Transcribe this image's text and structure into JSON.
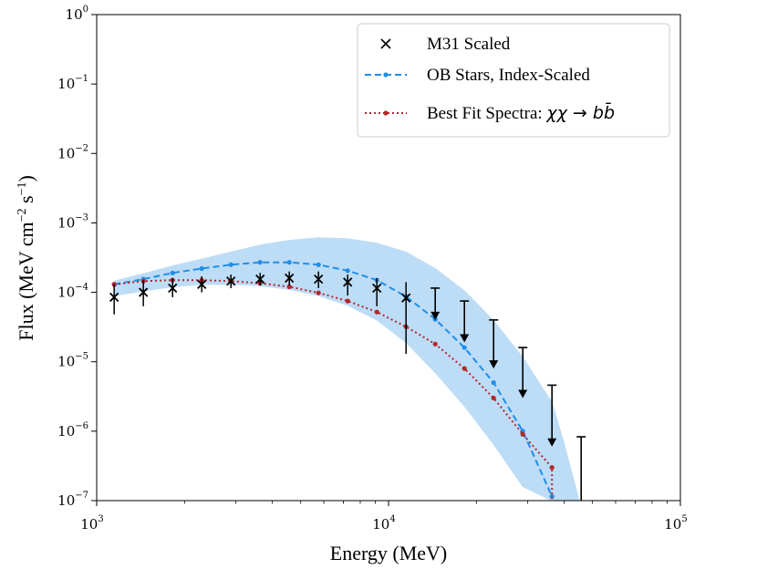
{
  "chart_data": {
    "type": "line",
    "title": "",
    "xlabel": "Energy (MeV)",
    "ylabel": {
      "prefix": "Flux (MeV cm",
      "exp1": "−2",
      "mid": " s",
      "exp2": "−1",
      "suffix": ")"
    },
    "xscale": "log",
    "yscale": "log",
    "xlim": [
      1000,
      100000
    ],
    "ylim": [
      1e-07,
      1
    ],
    "x_ticks": [
      {
        "value": 1000,
        "base": "10",
        "exp": "3"
      },
      {
        "value": 10000,
        "base": "10",
        "exp": "4"
      },
      {
        "value": 100000,
        "base": "10",
        "exp": "5"
      }
    ],
    "y_ticks": [
      {
        "value": 1e-07,
        "base": "10",
        "exp": "−7"
      },
      {
        "value": 1e-06,
        "base": "10",
        "exp": "−6"
      },
      {
        "value": 1e-05,
        "base": "10",
        "exp": "−5"
      },
      {
        "value": 0.0001,
        "base": "10",
        "exp": "−4"
      },
      {
        "value": 0.001,
        "base": "10",
        "exp": "−3"
      },
      {
        "value": 0.01,
        "base": "10",
        "exp": "−2"
      },
      {
        "value": 0.1,
        "base": "10",
        "exp": "−1"
      },
      {
        "value": 1,
        "base": "10",
        "exp": "0"
      }
    ],
    "legend_position": "top-right",
    "legend": {
      "m31": "M31 Scaled",
      "ob": "OB Stars, Index-Scaled",
      "fit_prefix": "Best Fit Spectra: ",
      "fit_math": "χχ → bb̄"
    },
    "colors": {
      "m31": "#000000",
      "ob_line": "#1f8ee8",
      "ob_band": "#bddcf6",
      "fit": "#b5262d"
    },
    "series": [
      {
        "name": "M31 Scaled",
        "kind": "errorbar",
        "x": [
          1148,
          1445,
          1820,
          2291,
          2884,
          3631,
          4571,
          5754,
          7244,
          9120,
          11482
        ],
        "y": [
          8.5e-05,
          0.0001,
          0.000115,
          0.00013,
          0.000145,
          0.000155,
          0.00016,
          0.000155,
          0.00014,
          0.000115,
          8.3e-05
        ],
        "y_low": [
          4.8e-05,
          6.3e-05,
          8.5e-05,
          0.0001,
          0.000115,
          0.000125,
          0.000125,
          0.000115,
          9e-05,
          6.3e-05,
          1.3e-05
        ],
        "y_high": [
          0.00013,
          0.00015,
          0.00016,
          0.00017,
          0.00018,
          0.00019,
          0.0002,
          0.0002,
          0.00018,
          0.00016,
          0.00014
        ]
      },
      {
        "name": "M31 Scaled upper limits",
        "kind": "upper_limit",
        "x": [
          14454,
          18197,
          22909,
          28840,
          36308,
          45709
        ],
        "y_top": [
          0.000115,
          7.5e-05,
          4e-05,
          1.6e-05,
          4.6e-06,
          8.3e-07
        ],
        "y_bottom": [
          4e-05,
          1.9e-05,
          8e-06,
          3e-06,
          6e-07,
          1e-07
        ]
      },
      {
        "name": "OB Stars, Index-Scaled",
        "kind": "dashed_line",
        "x": [
          1148,
          1445,
          1820,
          2291,
          2884,
          3631,
          4571,
          5754,
          7244,
          9120,
          11482,
          14454,
          18197,
          22909,
          28840,
          36308
        ],
        "y": [
          0.00013,
          0.000155,
          0.00019,
          0.00022,
          0.00025,
          0.00027,
          0.00027,
          0.00025,
          0.000205,
          0.00015,
          8.7e-05,
          4.1e-05,
          1.6e-05,
          5e-06,
          1e-06,
          1.15e-07
        ]
      },
      {
        "name": "OB Stars band",
        "kind": "band",
        "x": [
          1148,
          1445,
          1820,
          2291,
          2884,
          3631,
          4571,
          5754,
          7244,
          9120,
          11482,
          14454,
          18197,
          22909,
          28840,
          36308,
          40000,
          45000
        ],
        "y_low": [
          9e-05,
          0.000105,
          0.00012,
          0.00013,
          0.00013,
          0.000125,
          0.00011,
          9e-05,
          6.5e-05,
          4e-05,
          1.9e-05,
          7e-06,
          2.3e-06,
          6.5e-07,
          1.6e-07,
          1e-07,
          1e-07,
          1e-07
        ],
        "y_high": [
          0.000145,
          0.000185,
          0.00024,
          0.0003,
          0.00038,
          0.00048,
          0.00056,
          0.00061,
          0.00059,
          0.00051,
          0.00038,
          0.00022,
          0.000105,
          3.9e-05,
          1.15e-05,
          2.6e-06,
          6.5e-07,
          1e-07
        ]
      },
      {
        "name": "Best Fit Spectra: χχ → bb̄",
        "kind": "dotted_line",
        "x": [
          1148,
          1445,
          1820,
          2291,
          2884,
          3631,
          4571,
          5754,
          7244,
          9120,
          11482,
          14454,
          18197,
          22909,
          28840,
          36308,
          36308
        ],
        "y": [
          0.00013,
          0.000145,
          0.00015,
          0.00015,
          0.000145,
          0.000135,
          0.00012,
          9.8e-05,
          7.5e-05,
          5.2e-05,
          3.2e-05,
          1.8e-05,
          8e-06,
          3e-06,
          9e-07,
          3e-07,
          1e-07
        ]
      }
    ]
  }
}
